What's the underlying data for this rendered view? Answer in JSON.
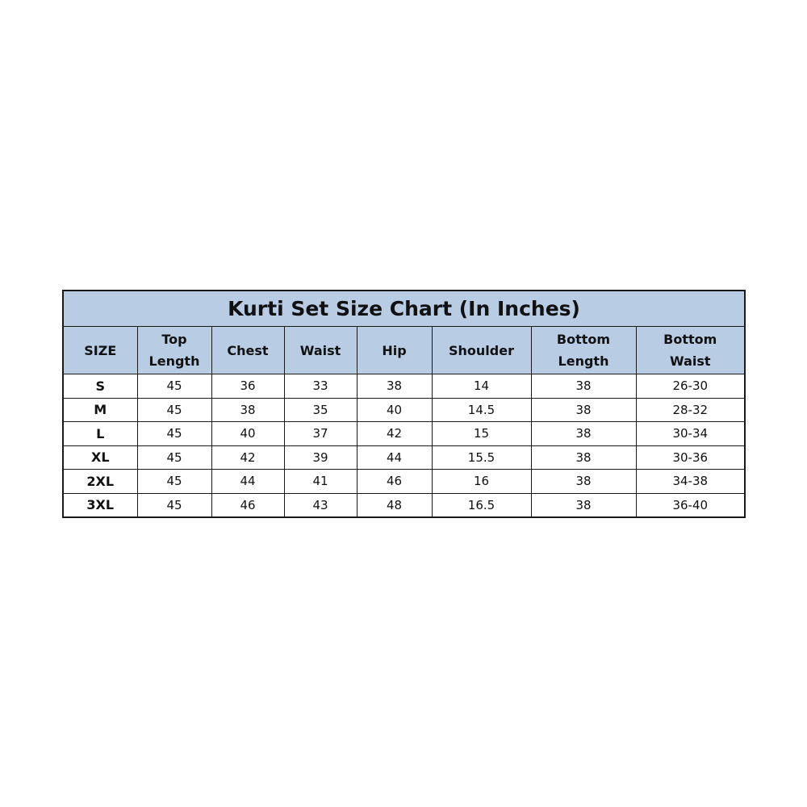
{
  "title": "Kurti Set Size Chart (In Inches)",
  "header_color": "#b8cce4",
  "columns": [
    "SIZE",
    "Top Length",
    "Chest",
    "Waist",
    "Hip",
    "Shoulder",
    "Bottom Length",
    "Bottom Waist"
  ],
  "rows": [
    [
      "S",
      "45",
      "36",
      "33",
      "38",
      "14",
      "38",
      "26-30"
    ],
    [
      "M",
      "45",
      "38",
      "35",
      "40",
      "14.5",
      "38",
      "28-32"
    ],
    [
      "L",
      "45",
      "40",
      "37",
      "42",
      "15",
      "38",
      "30-34"
    ],
    [
      "XL",
      "45",
      "42",
      "39",
      "44",
      "15.5",
      "38",
      "30-36"
    ],
    [
      "2XL",
      "45",
      "44",
      "41",
      "46",
      "16",
      "38",
      "34-38"
    ],
    [
      "3XL",
      "45",
      "46",
      "43",
      "48",
      "16.5",
      "38",
      "36-40"
    ]
  ]
}
